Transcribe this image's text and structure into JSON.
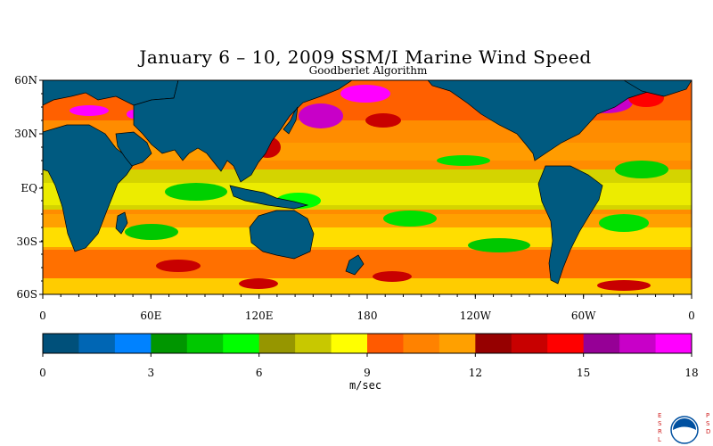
{
  "title": "January 6 – 10, 2009 SSM/I Marine Wind Speed",
  "subtitle": "Goodberlet Algorithm",
  "lat_labels": [
    "60N",
    "30N",
    "EQ",
    "30S",
    "60S"
  ],
  "lon_labels": [
    "0",
    "60E",
    "120E",
    "180",
    "120W",
    "60W",
    "0"
  ],
  "colorbar": {
    "colors": [
      "#00507a",
      "#0066b4",
      "#0082ff",
      "#009600",
      "#00c800",
      "#00ff00",
      "#969600",
      "#c8c800",
      "#ffff00",
      "#ff5a00",
      "#ff8200",
      "#ffa000",
      "#960000",
      "#c80000",
      "#ff0000",
      "#960096",
      "#c800c8",
      "#ff00ff"
    ],
    "tick_labels": [
      "0",
      "3",
      "6",
      "9",
      "12",
      "15",
      "18"
    ],
    "units": "m/sec"
  },
  "land_color": "#005a80",
  "logo": {
    "left_letters": "ESRL",
    "right_letters": "PSD",
    "center": "NOAA"
  }
}
